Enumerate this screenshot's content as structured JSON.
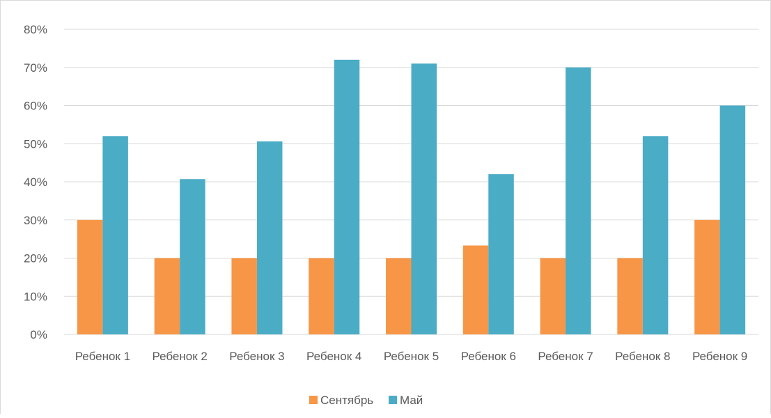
{
  "chart_data": {
    "type": "bar",
    "categories": [
      "Ребенок 1",
      "Ребенок 2",
      "Ребенок 3",
      "Ребенок 4",
      "Ребенок 5",
      "Ребенок 6",
      "Ребенок 7",
      "Ребенок 8",
      "Ребенок 9"
    ],
    "series": [
      {
        "name": "Сентябрь",
        "color": "#f79646",
        "values": [
          30,
          20,
          20,
          20,
          20,
          23.3,
          20,
          20,
          30
        ]
      },
      {
        "name": "Май",
        "color": "#4bacc6",
        "values": [
          52,
          40.7,
          50.6,
          72,
          71,
          42,
          70,
          52,
          60
        ]
      }
    ],
    "yticks": [
      "0%",
      "10%",
      "20%",
      "30%",
      "40%",
      "50%",
      "60%",
      "70%",
      "80%"
    ],
    "ylim": [
      0,
      80
    ],
    "grid": true,
    "legend": "bottom"
  }
}
